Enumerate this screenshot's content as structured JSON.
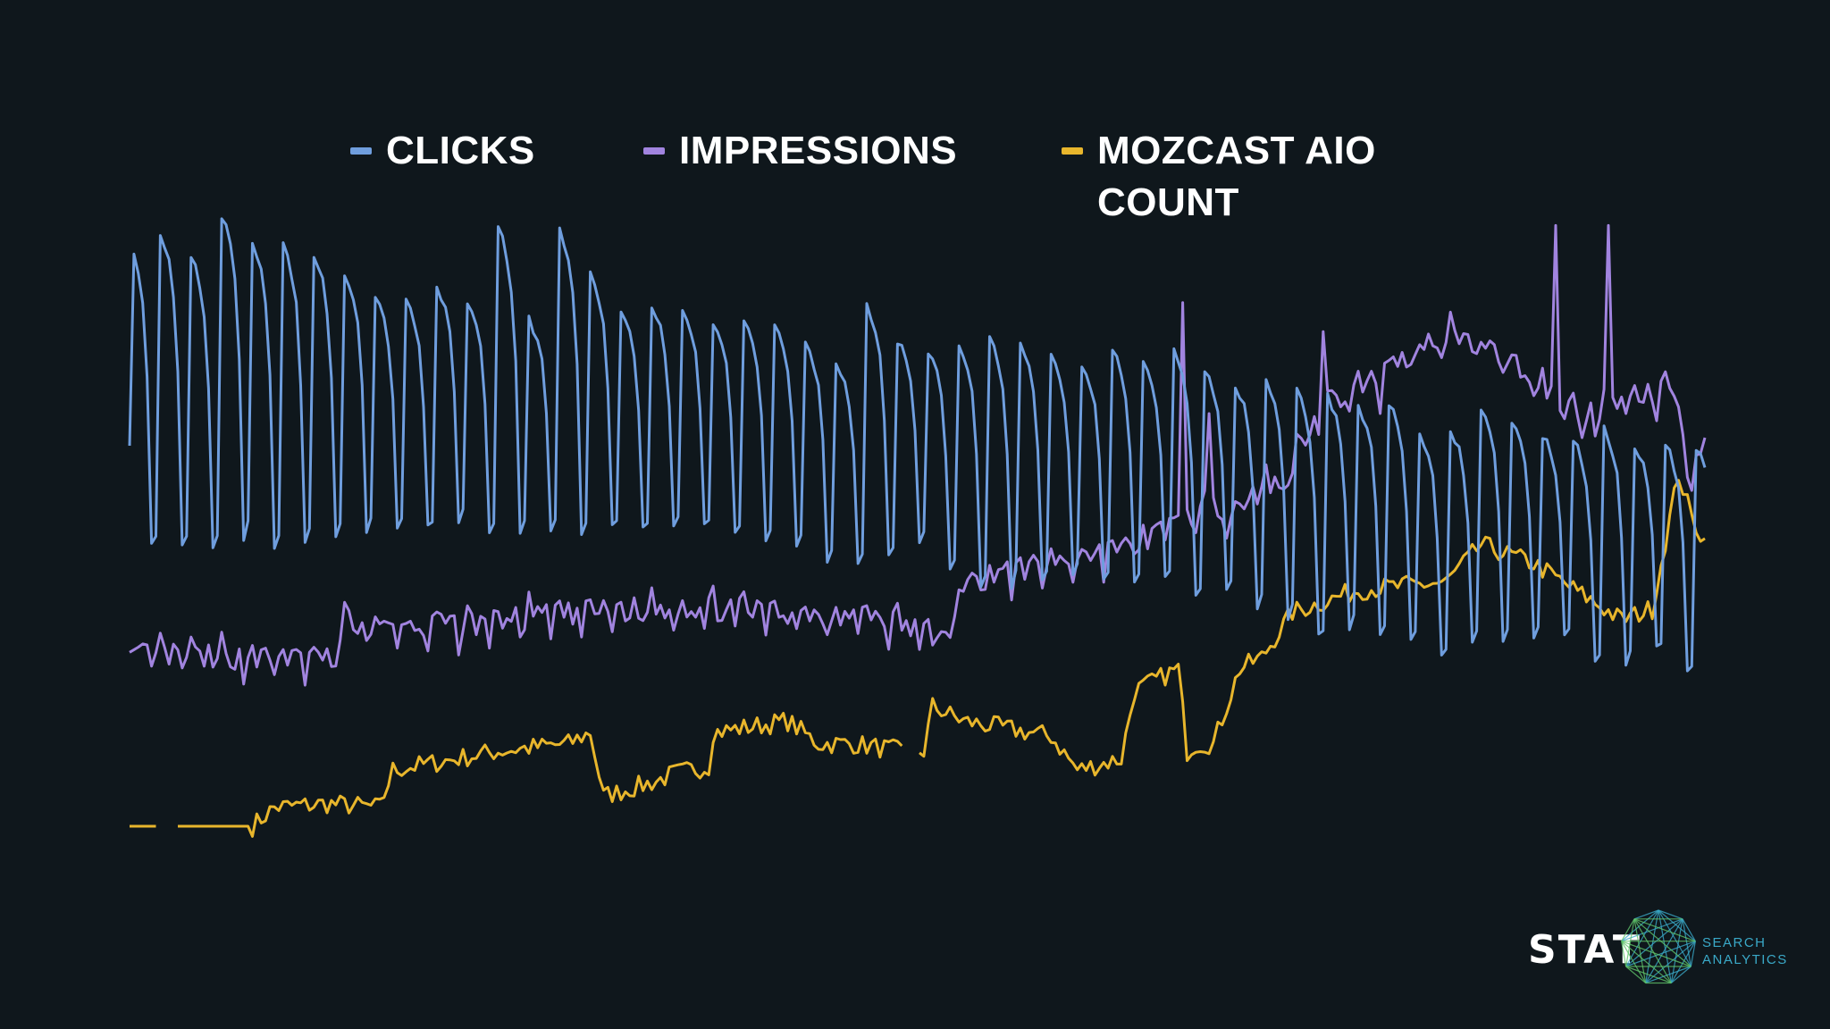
{
  "legend": {
    "clicks_label": "CLICKS",
    "impressions_label": "IMPRESSIONS",
    "mozcast_label": "MOZCAST AIO\nCOUNT"
  },
  "colors": {
    "background": "#0f171c",
    "clicks": "#6f9ede",
    "impressions": "#a184df",
    "mozcast": "#e8b62c"
  },
  "logo": {
    "wordmark": "STAT",
    "tagline": "SEARCH\nANALYTICS"
  },
  "chart_data": {
    "type": "line",
    "axes_visible": false,
    "grid": false,
    "legend_position": "top",
    "series": [
      {
        "name": "CLICKS",
        "pattern": "weekly",
        "x_count": 360,
        "weekly_shape": [
          1.0,
          0.96,
          0.9,
          0.8,
          0.55,
          0.0,
          0.04
        ],
        "peaks": [
          0.92,
          0.95,
          0.88,
          1.0,
          0.92,
          0.9,
          0.88,
          0.82,
          0.75,
          0.73,
          0.78,
          0.74,
          0.96,
          0.68,
          0.95,
          0.82,
          0.7,
          0.72,
          0.7,
          0.68,
          0.67,
          0.66,
          0.6,
          0.55,
          0.72,
          0.62,
          0.58,
          0.6,
          0.62,
          0.6,
          0.57,
          0.55,
          0.6,
          0.55,
          0.58,
          0.52,
          0.48,
          0.5,
          0.47,
          0.45,
          0.42,
          0.43,
          0.33,
          0.35,
          0.42,
          0.38,
          0.33,
          0.32,
          0.35,
          0.3,
          0.3
        ],
        "troughs": [
          0.0,
          0.0,
          0.0,
          0.02,
          0.0,
          0.0,
          0.02,
          0.05,
          0.05,
          0.05,
          0.07,
          0.05,
          0.03,
          0.05,
          0.03,
          0.05,
          0.05,
          0.07,
          0.05,
          0.03,
          0.02,
          0.0,
          -0.05,
          -0.05,
          -0.03,
          0.02,
          -0.08,
          -0.12,
          -0.12,
          -0.1,
          -0.08,
          -0.1,
          -0.12,
          -0.1,
          -0.15,
          -0.12,
          -0.18,
          -0.22,
          -0.28,
          -0.25,
          -0.27,
          -0.3,
          -0.33,
          -0.3,
          -0.3,
          -0.28,
          -0.28,
          -0.35,
          -0.35,
          -0.32,
          -0.38
        ]
      },
      {
        "name": "IMPRESSIONS",
        "pattern": "weekly",
        "x_count": 360,
        "anchors": [
          [
            0,
            0.05
          ],
          [
            46,
            0.04
          ],
          [
            49,
            0.12
          ],
          [
            60,
            0.1
          ],
          [
            120,
            0.15
          ],
          [
            170,
            0.13
          ],
          [
            186,
            0.08
          ],
          [
            190,
            0.2
          ],
          [
            230,
            0.28
          ],
          [
            241,
            0.34
          ],
          [
            252,
            0.36
          ],
          [
            264,
            0.42
          ],
          [
            270,
            0.55
          ],
          [
            300,
            0.72
          ],
          [
            315,
            0.66
          ],
          [
            330,
            0.55
          ],
          [
            352,
            0.6
          ],
          [
            356,
            0.38
          ],
          [
            360,
            0.6
          ]
        ],
        "spikes": [
          [
            48,
            0.08
          ],
          [
            93,
            0.15
          ],
          [
            113,
            0.12
          ],
          [
            240,
            0.78
          ],
          [
            246,
            0.55
          ],
          [
            272,
            0.72
          ],
          [
            285,
            0.55
          ],
          [
            325,
            0.94
          ],
          [
            331,
            0.5
          ],
          [
            337,
            0.94
          ],
          [
            341,
            0.55
          ],
          [
            359,
            0.5
          ]
        ]
      },
      {
        "name": "MOZCAST AIO COUNT",
        "x_count": 360,
        "anchors": [
          [
            0,
            0.0
          ],
          [
            6,
            0.0
          ],
          [
            9,
            null
          ],
          [
            10,
            0.0
          ],
          [
            25,
            0.0
          ],
          [
            28,
            0.0
          ],
          [
            33,
            0.05
          ],
          [
            45,
            0.06
          ],
          [
            57,
            0.05
          ],
          [
            60,
            0.15
          ],
          [
            70,
            0.17
          ],
          [
            84,
            0.2
          ],
          [
            100,
            0.22
          ],
          [
            105,
            0.25
          ],
          [
            108,
            0.08
          ],
          [
            120,
            0.12
          ],
          [
            124,
            0.14
          ],
          [
            132,
            0.16
          ],
          [
            133,
            0.25
          ],
          [
            150,
            0.28
          ],
          [
            157,
            0.22
          ],
          [
            165,
            0.22
          ],
          [
            176,
            0.2
          ],
          [
            178,
            null
          ],
          [
            179,
            0.2
          ],
          [
            181,
            0.2
          ],
          [
            183,
            0.32
          ],
          [
            190,
            0.28
          ],
          [
            210,
            0.24
          ],
          [
            216,
            0.15
          ],
          [
            226,
            0.18
          ],
          [
            229,
            0.36
          ],
          [
            239,
            0.42
          ],
          [
            241,
            0.2
          ],
          [
            243,
            0.22
          ],
          [
            247,
            0.22
          ],
          [
            253,
            0.42
          ],
          [
            258,
            0.45
          ],
          [
            265,
            0.57
          ],
          [
            280,
            0.63
          ],
          [
            300,
            0.65
          ],
          [
            308,
            0.75
          ],
          [
            320,
            0.7
          ],
          [
            340,
            0.55
          ],
          [
            347,
            0.58
          ],
          [
            353,
            0.94
          ],
          [
            356,
            0.82
          ],
          [
            360,
            0.74
          ]
        ]
      }
    ]
  }
}
